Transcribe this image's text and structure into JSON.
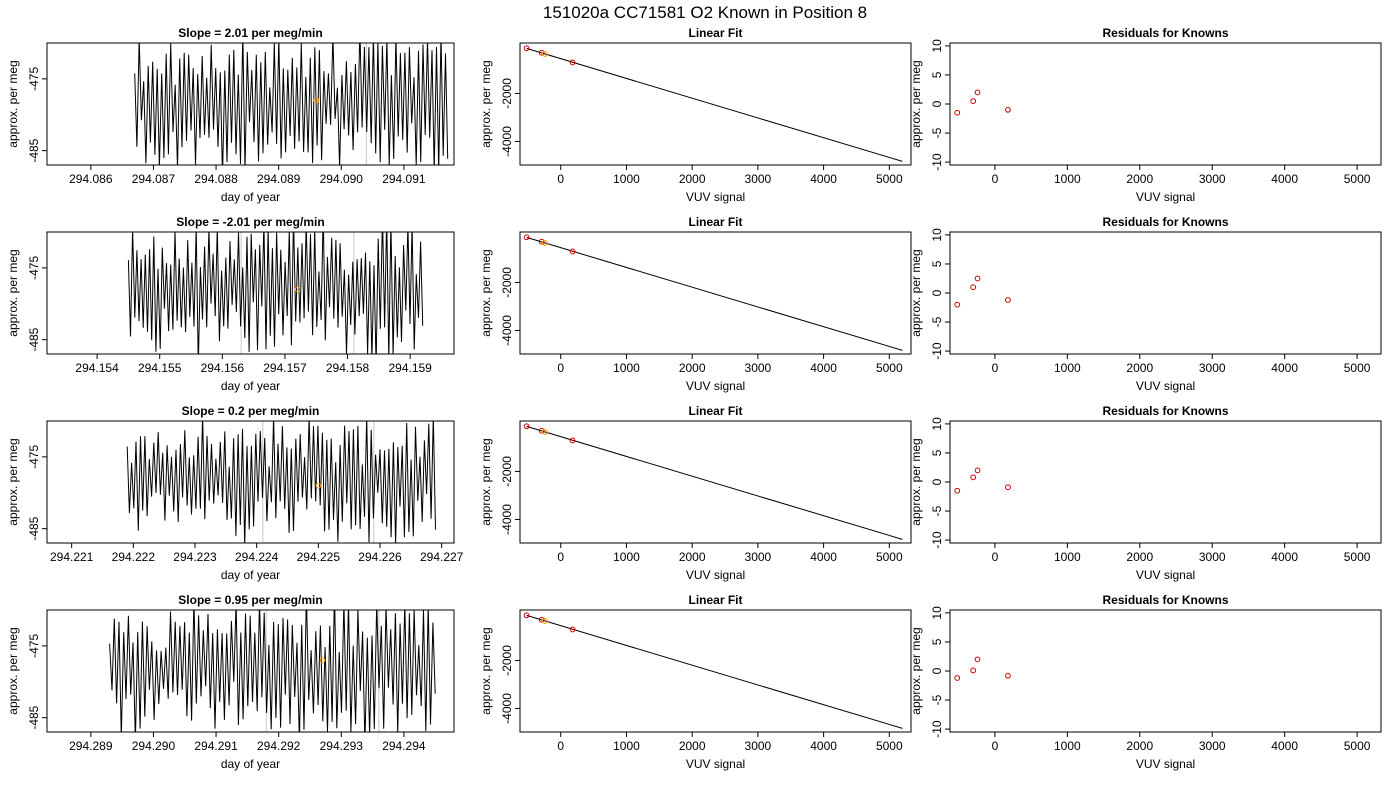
{
  "figure": {
    "title": "151020a     CC71581   O2 Known in Position  8"
  },
  "chart_data": [
    {
      "type": "line",
      "panel": "time-series",
      "row": 1,
      "title": "Slope =  2.01  per meg/min",
      "xlabel": "day of year",
      "ylabel": "approx. per meg",
      "xlim": [
        294.0853,
        294.0918
      ],
      "ylim": [
        -487,
        -470
      ],
      "xticks": [
        294.086,
        294.087,
        294.088,
        294.089,
        294.09,
        294.091
      ],
      "xticklabels": [
        "294.086",
        "294.087",
        "294.088",
        "294.089",
        "294.090",
        "294.091"
      ],
      "yticks": [
        -475,
        -485
      ],
      "yticklabels": [
        "-475",
        "-485"
      ],
      "vlines": [
        294.0904
      ],
      "marker": {
        "x": 294.0896,
        "y": -478,
        "color": "#ff9900"
      },
      "series": {
        "x_start": 294.0867,
        "x_end": 294.0917,
        "n": 140,
        "center": -478,
        "amplitude": 9.5,
        "seed": 11
      }
    },
    {
      "type": "line",
      "panel": "time-series",
      "row": 2,
      "title": "Slope =  -2.01  per meg/min",
      "xlabel": "day of year",
      "ylabel": "approx. per meg",
      "xlim": [
        294.1532,
        294.1597
      ],
      "ylim": [
        -487,
        -470
      ],
      "xticks": [
        294.154,
        294.155,
        294.156,
        294.157,
        294.158,
        294.159
      ],
      "xticklabels": [
        "294.154",
        "294.155",
        "294.156",
        "294.157",
        "294.158",
        "294.159"
      ],
      "yticks": [
        -475,
        -485
      ],
      "yticklabels": [
        "-475",
        "-485"
      ],
      "vlines": [
        294.1563,
        294.1581
      ],
      "marker": {
        "x": 294.1572,
        "y": -478,
        "color": "#ff9900"
      },
      "series": {
        "x_start": 294.1545,
        "x_end": 294.1592,
        "n": 140,
        "center": -478,
        "amplitude": 9.5,
        "seed": 23
      }
    },
    {
      "type": "line",
      "panel": "time-series",
      "row": 3,
      "title": "Slope =  0.2  per meg/min",
      "xlabel": "day of year",
      "ylabel": "approx. per meg",
      "xlim": [
        294.2206,
        294.2272
      ],
      "ylim": [
        -487,
        -470
      ],
      "xticks": [
        294.221,
        294.222,
        294.223,
        294.224,
        294.225,
        294.226,
        294.227
      ],
      "xticklabels": [
        "294.221",
        "294.222",
        "294.223",
        "294.224",
        "294.225",
        "294.226",
        "294.227"
      ],
      "yticks": [
        -475,
        -485
      ],
      "yticklabels": [
        "-475",
        "-485"
      ],
      "vlines": [
        294.2241,
        294.2259
      ],
      "marker": {
        "x": 294.225,
        "y": -479,
        "color": "#ff9900"
      },
      "series": {
        "x_start": 294.2219,
        "x_end": 294.2269,
        "n": 140,
        "center": -478,
        "amplitude": 8.5,
        "seed": 37
      }
    },
    {
      "type": "line",
      "panel": "time-series",
      "row": 4,
      "title": "Slope =  0.95  per meg/min",
      "xlabel": "day of year",
      "ylabel": "approx. per meg",
      "xlim": [
        294.2883,
        294.2948
      ],
      "ylim": [
        -487,
        -470
      ],
      "xticks": [
        294.289,
        294.29,
        294.291,
        294.292,
        294.293,
        294.294
      ],
      "xticklabels": [
        "294.289",
        "294.290",
        "294.291",
        "294.292",
        "294.293",
        "294.294"
      ],
      "yticks": [
        -475,
        -485
      ],
      "yticklabels": [
        "-475",
        "-485"
      ],
      "vlines": [
        294.2918,
        294.2936
      ],
      "marker": {
        "x": 294.2927,
        "y": -477,
        "color": "#ff9900"
      },
      "series": {
        "x_start": 294.2893,
        "x_end": 294.2945,
        "n": 140,
        "center": -478,
        "amplitude": 9.5,
        "seed": 53
      }
    },
    {
      "type": "scatter",
      "panel": "linear-fit",
      "row": 1,
      "title": "Linear Fit",
      "xlabel": "VUV signal",
      "ylabel": "approx. per meg",
      "xlim": [
        -620,
        5330
      ],
      "ylim": [
        -4980,
        100
      ],
      "xticks": [
        0,
        1000,
        2000,
        3000,
        4000,
        5000
      ],
      "xticklabels": [
        "0",
        "1000",
        "2000",
        "3000",
        "4000",
        "5000"
      ],
      "yticks": [
        -2000,
        -4000
      ],
      "yticklabels": [
        "-2000",
        "-4000"
      ],
      "fit_line": {
        "x": [
          -520,
          5200
        ],
        "y": [
          -125,
          -4830
        ]
      },
      "points": [
        {
          "x": -520,
          "y": -120,
          "color": "#cc0000"
        },
        {
          "x": -290,
          "y": -305,
          "color": "#cc0000"
        },
        {
          "x": -240,
          "y": -355,
          "color": "#ff9900"
        },
        {
          "x": 180,
          "y": -710,
          "color": "#cc0000"
        }
      ]
    },
    {
      "type": "scatter",
      "panel": "linear-fit",
      "row": 2,
      "title": "Linear Fit",
      "xlabel": "VUV signal",
      "ylabel": "approx. per meg",
      "xlim": [
        -620,
        5330
      ],
      "ylim": [
        -4980,
        100
      ],
      "xticks": [
        0,
        1000,
        2000,
        3000,
        4000,
        5000
      ],
      "xticklabels": [
        "0",
        "1000",
        "2000",
        "3000",
        "4000",
        "5000"
      ],
      "yticks": [
        -2000,
        -4000
      ],
      "yticklabels": [
        "-2000",
        "-4000"
      ],
      "fit_line": {
        "x": [
          -520,
          5200
        ],
        "y": [
          -125,
          -4830
        ]
      },
      "points": [
        {
          "x": -520,
          "y": -120,
          "color": "#cc0000"
        },
        {
          "x": -290,
          "y": -305,
          "color": "#cc0000"
        },
        {
          "x": -240,
          "y": -355,
          "color": "#ff9900"
        },
        {
          "x": 180,
          "y": -710,
          "color": "#cc0000"
        }
      ]
    },
    {
      "type": "scatter",
      "panel": "linear-fit",
      "row": 3,
      "title": "Linear Fit",
      "xlabel": "VUV signal",
      "ylabel": "approx. per meg",
      "xlim": [
        -620,
        5330
      ],
      "ylim": [
        -4980,
        100
      ],
      "xticks": [
        0,
        1000,
        2000,
        3000,
        4000,
        5000
      ],
      "xticklabels": [
        "0",
        "1000",
        "2000",
        "3000",
        "4000",
        "5000"
      ],
      "yticks": [
        -2000,
        -4000
      ],
      "yticklabels": [
        "-2000",
        "-4000"
      ],
      "fit_line": {
        "x": [
          -520,
          5200
        ],
        "y": [
          -125,
          -4830
        ]
      },
      "points": [
        {
          "x": -520,
          "y": -120,
          "color": "#cc0000"
        },
        {
          "x": -290,
          "y": -305,
          "color": "#cc0000"
        },
        {
          "x": -240,
          "y": -355,
          "color": "#ff9900"
        },
        {
          "x": 180,
          "y": -710,
          "color": "#cc0000"
        }
      ]
    },
    {
      "type": "scatter",
      "panel": "linear-fit",
      "row": 4,
      "title": "Linear Fit",
      "xlabel": "VUV signal",
      "ylabel": "approx. per meg",
      "xlim": [
        -620,
        5330
      ],
      "ylim": [
        -4980,
        100
      ],
      "xticks": [
        0,
        1000,
        2000,
        3000,
        4000,
        5000
      ],
      "xticklabels": [
        "0",
        "1000",
        "2000",
        "3000",
        "4000",
        "5000"
      ],
      "yticks": [
        -2000,
        -4000
      ],
      "yticklabels": [
        "-2000",
        "-4000"
      ],
      "fit_line": {
        "x": [
          -520,
          5200
        ],
        "y": [
          -125,
          -4830
        ]
      },
      "points": [
        {
          "x": -520,
          "y": -120,
          "color": "#cc0000"
        },
        {
          "x": -290,
          "y": -305,
          "color": "#cc0000"
        },
        {
          "x": -240,
          "y": -355,
          "color": "#ff9900"
        },
        {
          "x": 180,
          "y": -710,
          "color": "#cc0000"
        }
      ]
    },
    {
      "type": "scatter",
      "panel": "residuals",
      "row": 1,
      "title": "Residuals for Knowns",
      "xlabel": "VUV signal",
      "ylabel": "approx. per meg",
      "xlim": [
        -620,
        5330
      ],
      "ylim": [
        -10.5,
        10.5
      ],
      "xticks": [
        0,
        1000,
        2000,
        3000,
        4000,
        5000
      ],
      "xticklabels": [
        "0",
        "1000",
        "2000",
        "3000",
        "4000",
        "5000"
      ],
      "yticks": [
        10,
        5,
        0,
        -5,
        -10
      ],
      "yticklabels": [
        "10",
        "5",
        "0",
        "-5",
        "-10"
      ],
      "points": [
        {
          "x": -520,
          "y": -1.5,
          "color": "#cc0000"
        },
        {
          "x": -300,
          "y": 0.5,
          "color": "#cc0000"
        },
        {
          "x": -240,
          "y": 2.0,
          "color": "#cc0000"
        },
        {
          "x": 180,
          "y": -1.0,
          "color": "#cc0000"
        }
      ]
    },
    {
      "type": "scatter",
      "panel": "residuals",
      "row": 2,
      "title": "Residuals for Knowns",
      "xlabel": "VUV signal",
      "ylabel": "approx. per meg",
      "xlim": [
        -620,
        5330
      ],
      "ylim": [
        -10.5,
        10.5
      ],
      "xticks": [
        0,
        1000,
        2000,
        3000,
        4000,
        5000
      ],
      "xticklabels": [
        "0",
        "1000",
        "2000",
        "3000",
        "4000",
        "5000"
      ],
      "yticks": [
        10,
        5,
        0,
        -5,
        -10
      ],
      "yticklabels": [
        "10",
        "5",
        "0",
        "-5",
        "-10"
      ],
      "points": [
        {
          "x": -520,
          "y": -2.0,
          "color": "#cc0000"
        },
        {
          "x": -300,
          "y": 1.0,
          "color": "#cc0000"
        },
        {
          "x": -240,
          "y": 2.5,
          "color": "#cc0000"
        },
        {
          "x": 180,
          "y": -1.2,
          "color": "#cc0000"
        }
      ]
    },
    {
      "type": "scatter",
      "panel": "residuals",
      "row": 3,
      "title": "Residuals for Knowns",
      "xlabel": "VUV signal",
      "ylabel": "approx. per meg",
      "xlim": [
        -620,
        5330
      ],
      "ylim": [
        -10.5,
        10.5
      ],
      "xticks": [
        0,
        1000,
        2000,
        3000,
        4000,
        5000
      ],
      "xticklabels": [
        "0",
        "1000",
        "2000",
        "3000",
        "4000",
        "5000"
      ],
      "yticks": [
        10,
        5,
        0,
        -5,
        -10
      ],
      "yticklabels": [
        "10",
        "5",
        "0",
        "-5",
        "-10"
      ],
      "points": [
        {
          "x": -520,
          "y": -1.5,
          "color": "#cc0000"
        },
        {
          "x": -300,
          "y": 0.8,
          "color": "#cc0000"
        },
        {
          "x": -240,
          "y": 2.0,
          "color": "#cc0000"
        },
        {
          "x": 180,
          "y": -0.9,
          "color": "#cc0000"
        }
      ]
    },
    {
      "type": "scatter",
      "panel": "residuals",
      "row": 4,
      "title": "Residuals for Knowns",
      "xlabel": "VUV signal",
      "ylabel": "approx. per meg",
      "xlim": [
        -620,
        5330
      ],
      "ylim": [
        -10.5,
        10.5
      ],
      "xticks": [
        0,
        1000,
        2000,
        3000,
        4000,
        5000
      ],
      "xticklabels": [
        "0",
        "1000",
        "2000",
        "3000",
        "4000",
        "5000"
      ],
      "yticks": [
        10,
        5,
        0,
        -5,
        -10
      ],
      "yticklabels": [
        "10",
        "5",
        "0",
        "-5",
        "-10"
      ],
      "points": [
        {
          "x": -520,
          "y": -1.2,
          "color": "#cc0000"
        },
        {
          "x": -300,
          "y": 0.1,
          "color": "#cc0000"
        },
        {
          "x": -240,
          "y": 2.0,
          "color": "#cc0000"
        },
        {
          "x": 180,
          "y": -0.8,
          "color": "#cc0000"
        }
      ]
    }
  ]
}
